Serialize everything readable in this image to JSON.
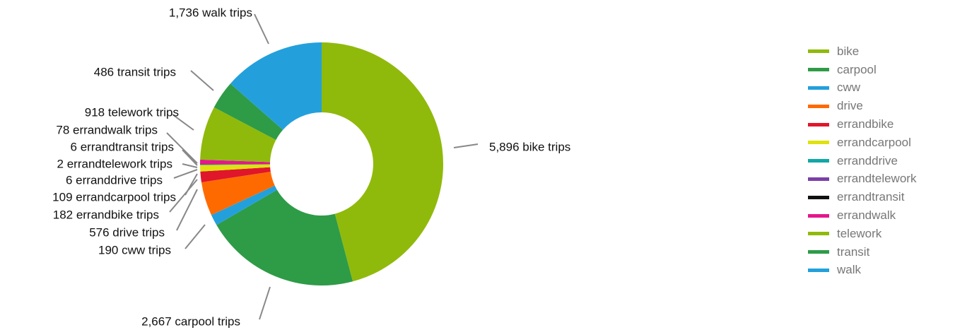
{
  "chart_data": {
    "type": "pie",
    "donut": true,
    "legend_position": "right",
    "slices": [
      {
        "name": "bike",
        "value": 5896,
        "label": "5,896 bike trips",
        "color": "#8fba0b"
      },
      {
        "name": "carpool",
        "value": 2667,
        "label": "2,667 carpool trips",
        "color": "#2e9b47"
      },
      {
        "name": "cww",
        "value": 190,
        "label": "190 cww trips",
        "color": "#23a0dc"
      },
      {
        "name": "drive",
        "value": 576,
        "label": "576 drive trips",
        "color": "#ff6a00"
      },
      {
        "name": "errandbike",
        "value": 182,
        "label": "182 errandbike trips",
        "color": "#e0162b"
      },
      {
        "name": "errandcarpool",
        "value": 109,
        "label": "109 errandcarpool trips",
        "color": "#dfe20e"
      },
      {
        "name": "erranddrive",
        "value": 6,
        "label": "6 erranddrive trips",
        "color": "#12a7a7"
      },
      {
        "name": "errandtelework",
        "value": 2,
        "label": "2 errandtelework trips",
        "color": "#7b3fa8"
      },
      {
        "name": "errandtransit",
        "value": 6,
        "label": "6 errandtransit trips",
        "color": "#111111"
      },
      {
        "name": "errandwalk",
        "value": 78,
        "label": "78 errandwalk trips",
        "color": "#e4178c"
      },
      {
        "name": "telework",
        "value": 918,
        "label": "918 telework trips",
        "color": "#8fba0b"
      },
      {
        "name": "transit",
        "value": 486,
        "label": "486 transit trips",
        "color": "#2e9b47"
      },
      {
        "name": "walk",
        "value": 1736,
        "label": "1,736 walk trips",
        "color": "#23a0dc"
      }
    ]
  }
}
